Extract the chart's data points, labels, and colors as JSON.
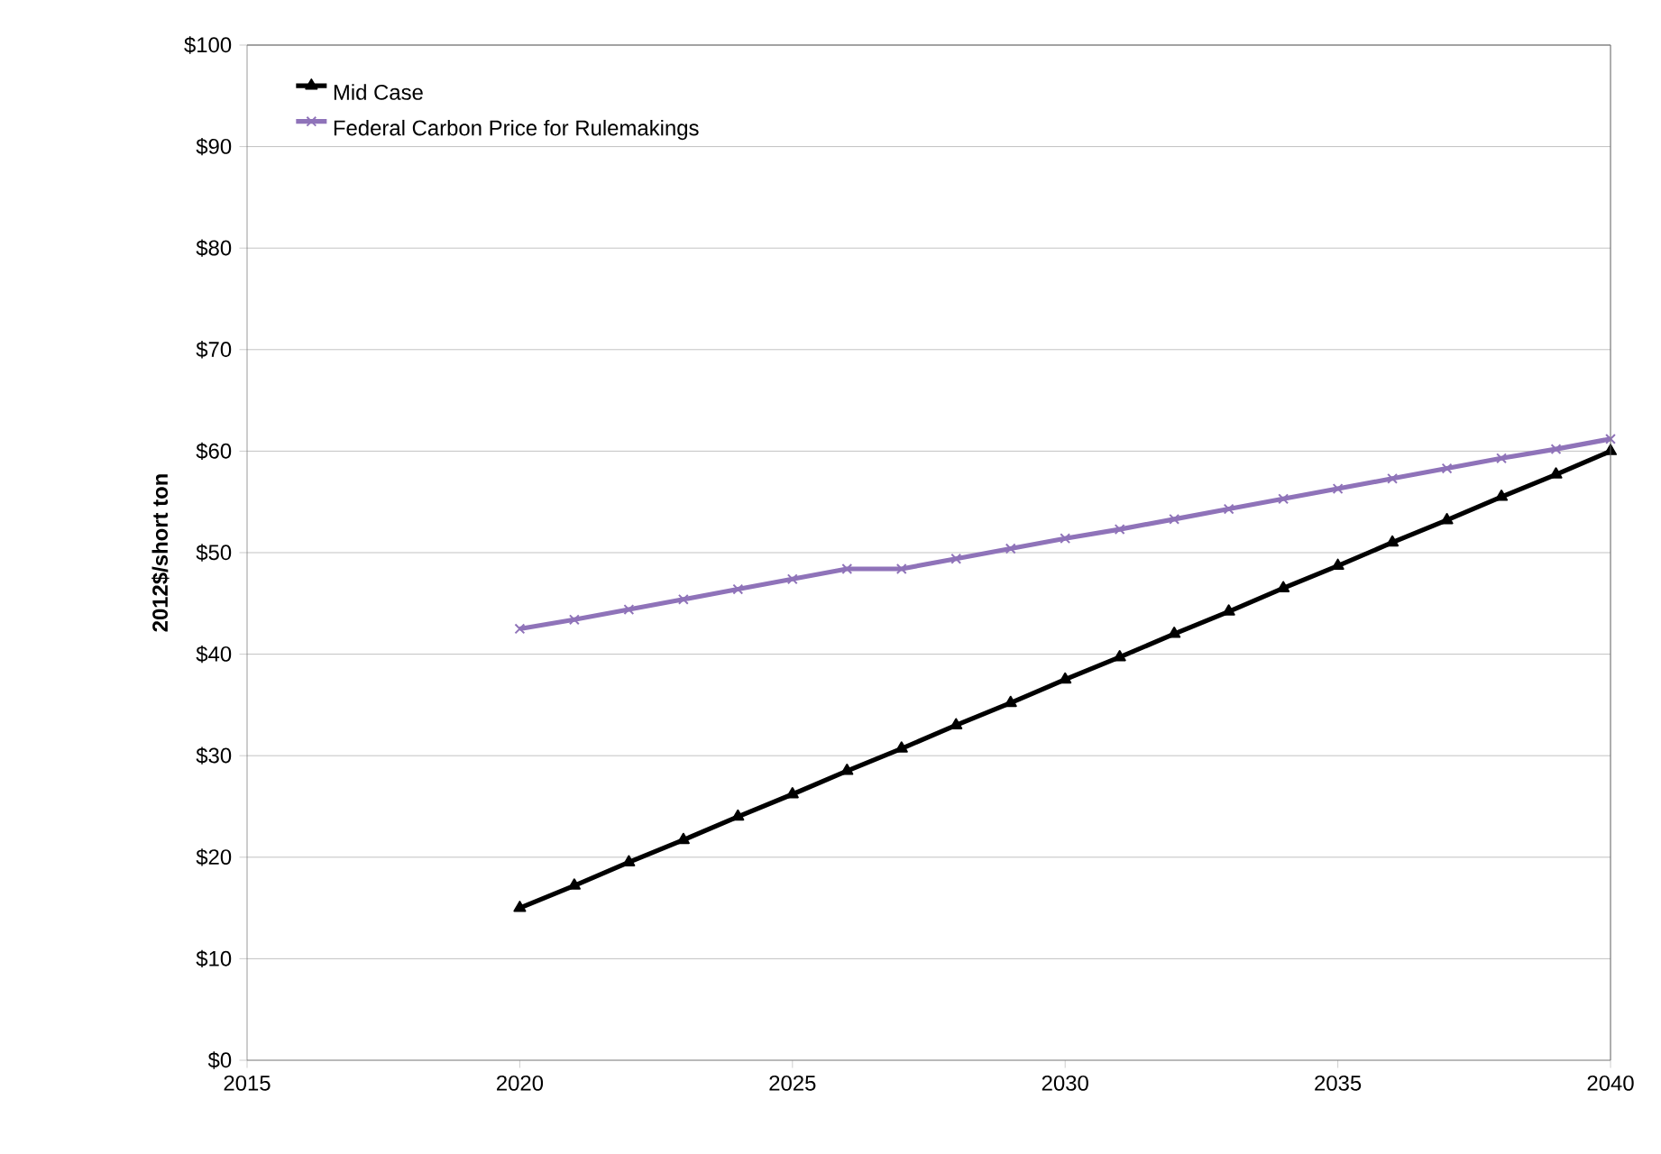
{
  "chart_data": {
    "type": "line",
    "ylabel": "2012$/short ton",
    "x": [
      2020,
      2021,
      2022,
      2023,
      2024,
      2025,
      2026,
      2027,
      2028,
      2029,
      2030,
      2031,
      2032,
      2033,
      2034,
      2035,
      2036,
      2037,
      2038,
      2039,
      2040
    ],
    "series": [
      {
        "name": "Mid Case",
        "color": "#000000",
        "marker": "triangle",
        "values": [
          15,
          17.2,
          19.5,
          21.7,
          24,
          26.2,
          28.5,
          30.7,
          33,
          35.2,
          37.5,
          39.7,
          42,
          44.2,
          46.5,
          48.7,
          51,
          53.2,
          55.5,
          57.7,
          60
        ]
      },
      {
        "name": "Federal Carbon Price for Rulemakings",
        "color": "#8f73b9",
        "marker": "cross",
        "values": [
          42.5,
          43.4,
          44.4,
          45.4,
          46.4,
          47.4,
          48.4,
          48.4,
          49.4,
          50.4,
          51.4,
          52.3,
          53.3,
          54.3,
          55.3,
          56.3,
          57.3,
          58.3,
          59.3,
          60.2,
          61.2
        ]
      }
    ],
    "xlim": [
      2015,
      2040
    ],
    "xticks": [
      2015,
      2020,
      2025,
      2030,
      2035,
      2040
    ],
    "ylim": [
      0,
      100
    ],
    "yticks": [
      {
        "value": 0,
        "label": "$0"
      },
      {
        "value": 10,
        "label": "$10"
      },
      {
        "value": 20,
        "label": "$20"
      },
      {
        "value": 30,
        "label": "$30"
      },
      {
        "value": 40,
        "label": "$40"
      },
      {
        "value": 50,
        "label": "$50"
      },
      {
        "value": 60,
        "label": "$60"
      },
      {
        "value": 70,
        "label": "$70"
      },
      {
        "value": 80,
        "label": "$80"
      },
      {
        "value": 90,
        "label": "$90"
      },
      {
        "value": 100,
        "label": "$100"
      }
    ],
    "grid": "y",
    "legend": "top left",
    "line_style": "solid"
  }
}
